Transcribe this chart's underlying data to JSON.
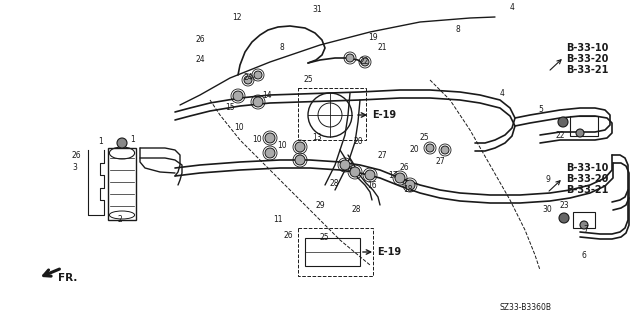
{
  "bg_color": "#ffffff",
  "line_color": "#1a1a1a",
  "fig_width": 6.4,
  "fig_height": 3.19,
  "dpi": 100,
  "diagram_ref": "SZ33-B3360B",
  "part_labels_top_right": [
    "B-33-10",
    "B-33-20",
    "B-33-21"
  ],
  "part_labels_mid_right": [
    "B-33-10",
    "B-33-20",
    "B-33-21"
  ]
}
